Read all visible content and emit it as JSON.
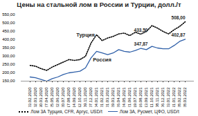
{
  "chart_data": {
    "type": "line",
    "title": "Цены на стальной лом в России и Турции, долл./т",
    "x": [
      "03.02.2020",
      "02.03.2020",
      "30.03.2020",
      "27.04.2020",
      "25.05.2020",
      "22.06.2020",
      "20.07.2020",
      "17.08.2020",
      "14.09.2020",
      "12.10.2020",
      "09.11.2020",
      "07.12.2020",
      "04.01.2021",
      "01.02.2021",
      "01.03.2021",
      "29.03.2021",
      "26.04.2021",
      "24.05.2021",
      "21.06.2021",
      "19.07.2021",
      "16.08.2021",
      "13.09.2021",
      "11.10.2021",
      "08.11.2021",
      "06.12.2021",
      "03.01.2022",
      "31.01.2022",
      "28.02.2022",
      "28.03.2022"
    ],
    "series": [
      {
        "name": "Лом 3А Турция, CFR, Аргус, USD/t",
        "color": "#000000",
        "line_style": "dotted",
        "values": [
          245,
          240,
          225,
          215,
          235,
          250,
          265,
          280,
          275,
          280,
          300,
          380,
          430,
          395,
          410,
          420,
          435,
          440,
          425,
          445,
          433.5,
          450,
          485,
          470,
          450,
          435,
          460,
          480,
          508
        ]
      },
      {
        "name": "Лом 3А, Русмет, ЦФО, USD/t",
        "color": "#2e5fa8",
        "line_style": "solid",
        "values": [
          175,
          170,
          160,
          150,
          165,
          175,
          190,
          200,
          205,
          210,
          230,
          290,
          330,
          320,
          310,
          320,
          340,
          330,
          325,
          335,
          347.87,
          340,
          360,
          350,
          345,
          345,
          365,
          390,
          402.87
        ]
      }
    ],
    "ylim": [
      150,
      550
    ],
    "yticks": [
      {
        "value": 150,
        "label": "150,00"
      },
      {
        "value": 200,
        "label": "200,00"
      },
      {
        "value": 250,
        "label": "250,00"
      },
      {
        "value": 300,
        "label": "300,00"
      },
      {
        "value": 350,
        "label": "350,00"
      },
      {
        "value": 400,
        "label": "400,00"
      },
      {
        "value": 450,
        "label": "450,00"
      },
      {
        "value": 500,
        "label": "500,00"
      },
      {
        "value": 550,
        "label": "550,00"
      }
    ],
    "grid": false,
    "legend": "bottom",
    "annotations": [
      {
        "x": "09.11.2020",
        "y": 430,
        "text": "Турция"
      },
      {
        "x": "01.02.2021",
        "y": 280,
        "text": "Россия"
      },
      {
        "x": "16.08.2021",
        "y": 433.5,
        "text": "433,50"
      },
      {
        "x": "16.08.2021",
        "y": 347.87,
        "text": "347,87"
      },
      {
        "x": "28.03.2022",
        "y": 508,
        "text": "508,00"
      },
      {
        "x": "28.03.2022",
        "y": 402.87,
        "text": "402,87"
      }
    ]
  }
}
